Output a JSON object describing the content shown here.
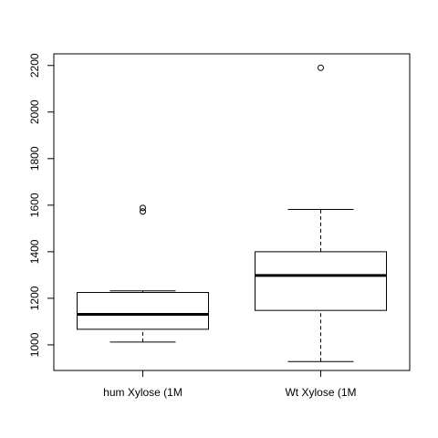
{
  "chart_data": {
    "type": "boxplot",
    "title": "",
    "xlabel": "",
    "ylabel": "",
    "ylim": [
      890,
      2250
    ],
    "y_ticks": [
      1000,
      1200,
      1400,
      1600,
      1800,
      2000,
      2200
    ],
    "categories": [
      "hum Xylose (1M",
      "Wt Xylose (1M"
    ],
    "boxes": [
      {
        "label": "hum Xylose (1M",
        "whisker_low": 1012,
        "q1": 1067,
        "median": 1131,
        "q3": 1225,
        "whisker_high": 1232,
        "outliers": [
          1573,
          1588
        ]
      },
      {
        "label": "Wt Xylose (1M",
        "whisker_low": 928,
        "q1": 1148,
        "median": 1298,
        "q3": 1400,
        "whisker_high": 1582,
        "outliers": [
          2190
        ]
      }
    ],
    "grid": false,
    "legend": "none"
  }
}
